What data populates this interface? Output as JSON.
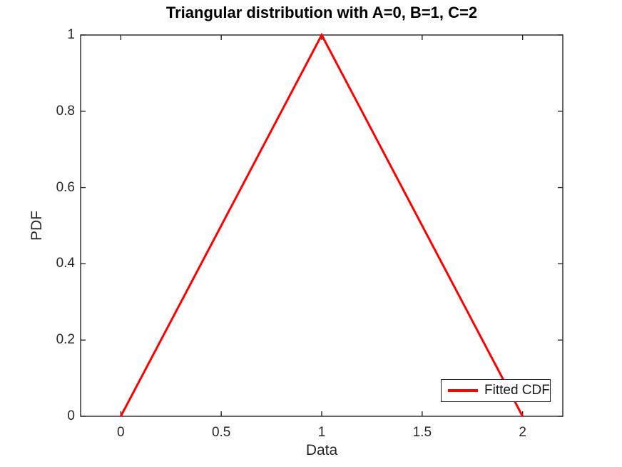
{
  "figure": {
    "title": "Triangular distribution with A=0, B=1, C=2",
    "xlabel": "Data",
    "ylabel": "PDF",
    "background_color": "#ffffff"
  },
  "legend": {
    "position": "southeast",
    "entries": [
      {
        "label": "Fitted CDF",
        "color": "#ff0000",
        "line_width": 4
      }
    ]
  },
  "chart_data": {
    "type": "line",
    "title": "Triangular distribution with A=0, B=1, C=2",
    "xlabel": "Data",
    "ylabel": "PDF",
    "series": [
      {
        "name": "Fitted CDF",
        "color": "#ff0000",
        "line_width": 3,
        "x": [
          0,
          1,
          2
        ],
        "y": [
          0,
          1,
          0
        ]
      }
    ],
    "xlim": [
      -0.2,
      2.2
    ],
    "ylim": [
      0,
      1
    ],
    "xticks": [
      0,
      0.5,
      1,
      1.5,
      2
    ],
    "xtick_labels": [
      "0",
      "0.5",
      "1",
      "1.5",
      "2"
    ],
    "yticks": [
      0,
      0.2,
      0.4,
      0.6,
      0.8,
      1
    ],
    "ytick_labels": [
      "0",
      "0.2",
      "0.4",
      "0.6",
      "0.8",
      "1"
    ],
    "grid": false,
    "box": true,
    "tick_direction": "in",
    "tick_length": 7,
    "axis_color": "#262626",
    "legend_position": "southeast"
  }
}
